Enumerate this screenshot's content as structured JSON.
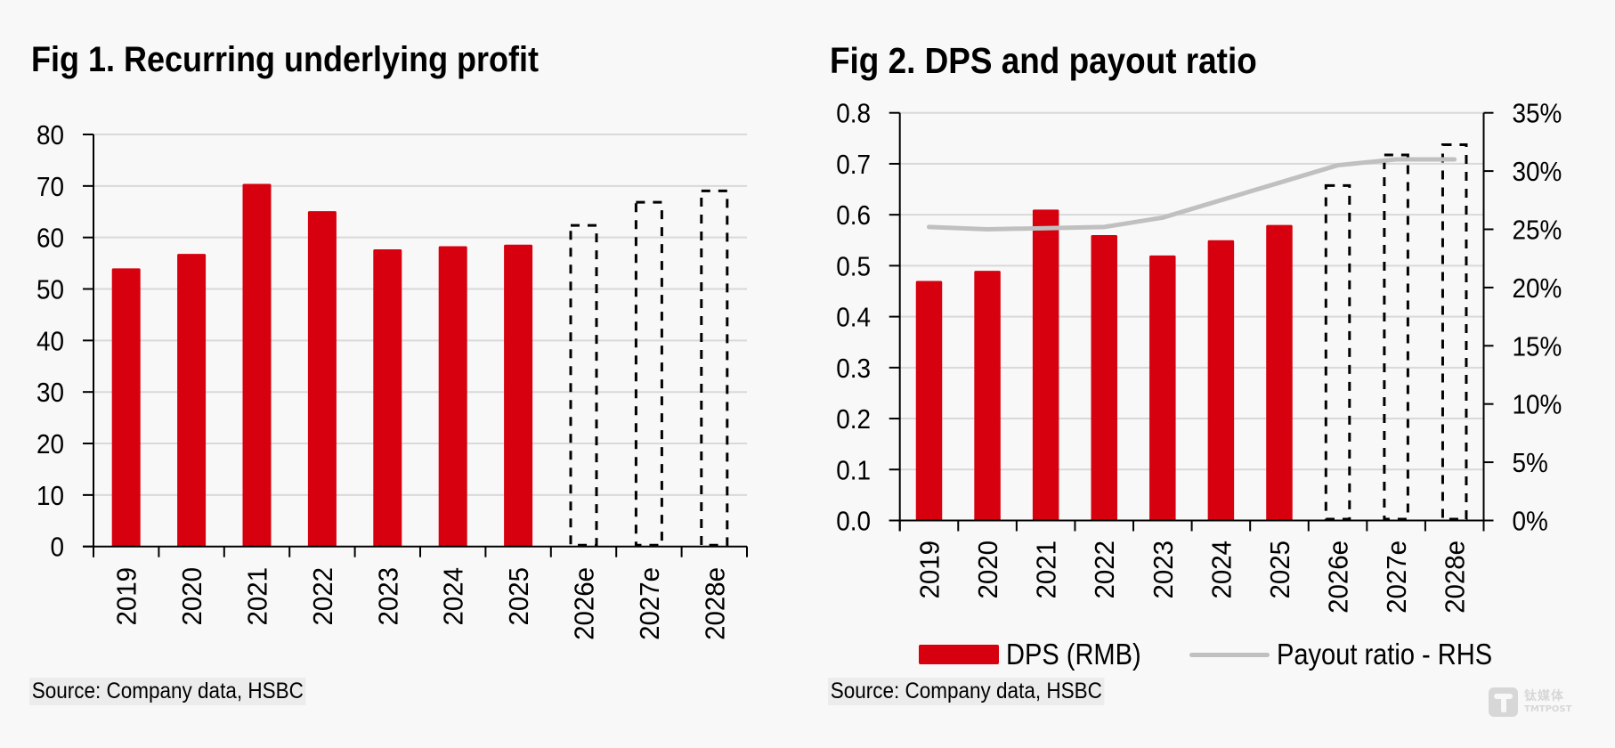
{
  "colors": {
    "bar": "#d7000f",
    "line": "#c0c0c0",
    "grid": "#d9d9d9",
    "axis": "#000000",
    "forecast_outline": "#000000",
    "background": "#f8f8f8"
  },
  "figures": [
    {
      "title": "Fig 1. Recurring underlying profit",
      "source": "Source: Company data, HSBC"
    },
    {
      "title": "Fig 2. DPS and payout ratio",
      "source": "Source: Company data, HSBC",
      "legend": [
        {
          "label": "DPS (RMB)",
          "kind": "bar"
        },
        {
          "label": "Payout ratio - RHS",
          "kind": "line"
        }
      ]
    }
  ],
  "watermark": {
    "cn": "钛媒体",
    "en": "TMTPOST"
  },
  "chart_data": [
    {
      "type": "bar",
      "title": "Fig 1. Recurring underlying profit",
      "xlabel": "",
      "ylabel": "",
      "categories": [
        "2019",
        "2020",
        "2021",
        "2022",
        "2023",
        "2024",
        "2025",
        "2026e",
        "2027e",
        "2028e"
      ],
      "values": [
        54.0,
        56.8,
        70.4,
        65.1,
        57.7,
        58.3,
        58.6,
        62.6,
        67.1,
        69.3
      ],
      "forecast": [
        false,
        false,
        false,
        false,
        false,
        false,
        false,
        true,
        true,
        true
      ],
      "ylim": [
        0,
        80
      ],
      "yticks": [
        "0",
        "10",
        "20",
        "30",
        "40",
        "50",
        "60",
        "70",
        "80"
      ],
      "ytick_values": [
        0,
        10,
        20,
        30,
        40,
        50,
        60,
        70,
        80
      ],
      "grid": true,
      "legend": "none"
    },
    {
      "type": "bar",
      "title": "Fig 2. DPS and payout ratio",
      "xlabel": "",
      "categories": [
        "2019",
        "2020",
        "2021",
        "2022",
        "2023",
        "2024",
        "2025",
        "2026e",
        "2027e",
        "2028e"
      ],
      "forecast": [
        false,
        false,
        false,
        false,
        false,
        false,
        false,
        true,
        true,
        true
      ],
      "series": [
        {
          "name": "DPS (RMB)",
          "type": "bar",
          "axis": "left",
          "values": [
            0.47,
            0.49,
            0.61,
            0.56,
            0.52,
            0.55,
            0.58,
            0.66,
            0.72,
            0.74
          ]
        },
        {
          "name": "Payout ratio - RHS",
          "type": "line",
          "axis": "right",
          "values": [
            25.2,
            25.0,
            25.1,
            25.2,
            26.0,
            27.5,
            29.0,
            30.5,
            31.0,
            31.0
          ]
        }
      ],
      "ylim": [
        0,
        0.8
      ],
      "yticks": [
        "0.0",
        "0.1",
        "0.2",
        "0.3",
        "0.4",
        "0.5",
        "0.6",
        "0.7",
        "0.8"
      ],
      "ytick_values": [
        0,
        0.1,
        0.2,
        0.3,
        0.4,
        0.5,
        0.6,
        0.7,
        0.8
      ],
      "y2lim": [
        0,
        35
      ],
      "y2ticks": [
        "0%",
        "5%",
        "10%",
        "15%",
        "20%",
        "25%",
        "30%",
        "35%"
      ],
      "y2tick_values": [
        0,
        5,
        10,
        15,
        20,
        25,
        30,
        35
      ],
      "grid": true,
      "legend": "bottom"
    }
  ]
}
